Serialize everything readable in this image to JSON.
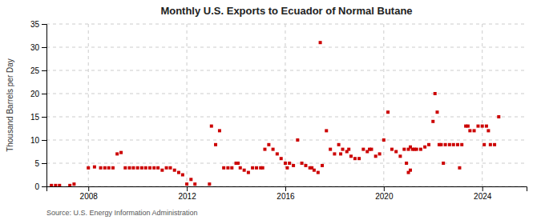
{
  "chart_data": {
    "type": "scatter",
    "title": "Monthly U.S. Exports to Ecuador of Normal Butane",
    "ylabel": "Thousand Barrels per Day",
    "annotations": [
      "Source: U.S. Energy Information Administration"
    ],
    "color": "#cc0000",
    "marker": "square",
    "grid": true,
    "xlim": [
      2006.3,
      2025.8
    ],
    "xticks": [
      2008,
      2012,
      2016,
      2020,
      2024
    ],
    "ylim": [
      0,
      35
    ],
    "yticks": [
      0,
      5,
      10,
      15,
      20,
      25,
      30,
      35
    ],
    "x": [
      2006.5,
      2006.67,
      2006.83,
      2007.25,
      2007.42,
      2008.0,
      2008.25,
      2008.5,
      2008.67,
      2008.83,
      2009.0,
      2009.17,
      2009.33,
      2009.5,
      2009.67,
      2009.83,
      2010.0,
      2010.17,
      2010.33,
      2010.5,
      2010.67,
      2010.83,
      2011.0,
      2011.17,
      2011.33,
      2011.5,
      2011.67,
      2011.83,
      2012.0,
      2012.17,
      2012.33,
      2012.92,
      2013.0,
      2013.17,
      2013.33,
      2013.5,
      2013.67,
      2013.83,
      2014.0,
      2014.17,
      2014.33,
      2014.5,
      2014.67,
      2014.83,
      2015.0,
      2015.17,
      2015.33,
      2015.5,
      2015.67,
      2015.83,
      2016.0,
      2016.17,
      2016.33,
      2016.5,
      2016.67,
      2016.83,
      2017.0,
      2017.17,
      2017.33,
      2017.42,
      2017.5,
      2017.67,
      2017.83,
      2018.0,
      2018.17,
      2018.25,
      2018.33,
      2018.5,
      2018.67,
      2018.83,
      2019.0,
      2019.17,
      2019.33,
      2019.5,
      2019.67,
      2019.83,
      2020.0,
      2020.17,
      2020.33,
      2020.5,
      2020.67,
      2020.83,
      2021.0,
      2021.08,
      2021.17,
      2021.25,
      2021.33,
      2021.5,
      2021.67,
      2021.83,
      2022.0,
      2022.08,
      2022.17,
      2022.25,
      2022.33,
      2022.42,
      2022.5,
      2022.67,
      2022.83,
      2023.0,
      2023.08,
      2023.17,
      2023.33,
      2023.42,
      2023.5,
      2023.67,
      2023.83,
      2024.0,
      2024.08,
      2024.17,
      2024.25,
      2024.33,
      2024.5,
      2024.67,
      2020.92,
      2021.0,
      2021.08,
      2019.42,
      2018.58,
      2016.08,
      2017.08,
      2014.08,
      2015.08
    ],
    "values": [
      0.2,
      0.2,
      0.2,
      0.2,
      0.5,
      4.0,
      4.2,
      4.0,
      4.0,
      4.0,
      4.0,
      7.0,
      7.3,
      4.0,
      4.0,
      4.0,
      4.0,
      4.0,
      4.0,
      4.0,
      4.0,
      4.0,
      3.5,
      4.0,
      4.0,
      3.5,
      3.0,
      2.5,
      0.5,
      1.5,
      0.5,
      0.5,
      13.0,
      9.0,
      12.0,
      4.0,
      4.0,
      4.0,
      5.0,
      4.0,
      3.5,
      3.0,
      4.0,
      4.0,
      4.0,
      8.0,
      9.0,
      8.0,
      7.0,
      6.0,
      5.0,
      5.0,
      4.5,
      10.0,
      5.0,
      4.5,
      4.0,
      3.5,
      3.0,
      31.0,
      4.5,
      12.0,
      8.0,
      7.0,
      9.0,
      7.0,
      8.0,
      7.5,
      6.5,
      6.0,
      6.0,
      8.0,
      7.5,
      8.0,
      6.5,
      7.0,
      10.0,
      16.0,
      8.0,
      7.5,
      6.5,
      8.0,
      8.0,
      8.5,
      8.0,
      8.0,
      8.0,
      8.0,
      8.5,
      9.0,
      14.0,
      20.0,
      16.0,
      9.0,
      9.0,
      5.0,
      9.0,
      9.0,
      9.0,
      9.0,
      4.0,
      9.0,
      13.0,
      13.0,
      12.0,
      12.0,
      13.0,
      13.0,
      9.0,
      13.0,
      12.0,
      9.0,
      9.0,
      15.0,
      5.0,
      3.0,
      3.5,
      8.0,
      8.0,
      4.0,
      4.0,
      5.0,
      4.0
    ]
  }
}
